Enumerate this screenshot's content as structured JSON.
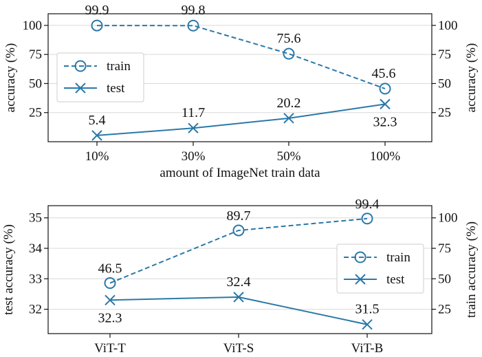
{
  "chart_data": [
    {
      "type": "line",
      "xlabel": "amount of ImageNet train data",
      "ylabel_left": "accuracy (%)",
      "ylabel_right": "accuracy (%)",
      "categories": [
        "10%",
        "30%",
        "50%",
        "100%"
      ],
      "ylim": [
        0,
        110
      ],
      "yticks": [
        25,
        50,
        75,
        100
      ],
      "right_ylim": [
        0,
        110
      ],
      "right_yticks": [
        25,
        50,
        75,
        100
      ],
      "grid": "horizontal",
      "legend": "left",
      "series": [
        {
          "name": "train",
          "axis": "left",
          "values": [
            99.9,
            99.8,
            75.6,
            45.6
          ],
          "labels": [
            "99.9",
            "99.8",
            "75.6",
            "45.6"
          ],
          "style": "dashed",
          "marker": "circle",
          "color": "#2a78a8"
        },
        {
          "name": "test",
          "axis": "left",
          "values": [
            5.4,
            11.7,
            20.2,
            32.3
          ],
          "labels": [
            "5.4",
            "11.7",
            "20.2",
            "32.3"
          ],
          "style": "solid",
          "marker": "x",
          "color": "#2a78a8"
        }
      ]
    },
    {
      "type": "line",
      "xlabel": "",
      "ylabel_left": "test accuracy (%)",
      "ylabel_right": "train accuracy (%)",
      "categories": [
        "ViT-T",
        "ViT-S",
        "ViT-B"
      ],
      "ylim": [
        31.2,
        35.4
      ],
      "yticks": [
        32,
        33,
        34,
        35
      ],
      "right_ylim": [
        5,
        110
      ],
      "right_yticks": [
        25,
        50,
        75,
        100
      ],
      "grid": "horizontal",
      "legend": "right",
      "series": [
        {
          "name": "train",
          "axis": "right",
          "values": [
            46.5,
            89.7,
            99.4
          ],
          "labels": [
            "46.5",
            "89.7",
            "99.4"
          ],
          "style": "dashed",
          "marker": "circle",
          "color": "#2a78a8"
        },
        {
          "name": "test",
          "axis": "left",
          "values": [
            32.3,
            32.4,
            31.5
          ],
          "labels": [
            "32.3",
            "32.4",
            "31.5"
          ],
          "style": "solid",
          "marker": "x",
          "color": "#2a78a8"
        }
      ]
    }
  ]
}
